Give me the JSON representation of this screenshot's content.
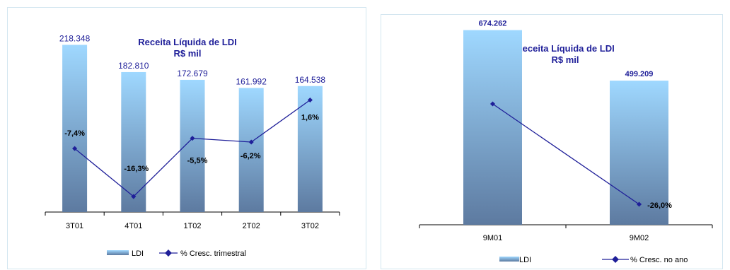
{
  "chart_data": [
    {
      "type": "bar",
      "title": "Receita Líquida de LDI",
      "subtitle": "R$ mil",
      "categories": [
        "3T01",
        "4T01",
        "1T02",
        "2T02",
        "3T02"
      ],
      "series": [
        {
          "name": "LDI",
          "kind": "bar",
          "values": [
            218.348,
            182.81,
            172.679,
            161.992,
            164.538
          ],
          "labels": [
            "218.348",
            "182.810",
            "172.679",
            "161.992",
            "164.538"
          ]
        },
        {
          "name": "% Cresc. trimestral",
          "kind": "line",
          "values": [
            -7.4,
            -16.3,
            -5.5,
            -6.2,
            1.6
          ],
          "labels": [
            "-7,4%",
            "-16,3%",
            "-5,5%",
            "-6,2%",
            "1,6%"
          ]
        }
      ],
      "bar_ylim": [
        0,
        240
      ],
      "line_ylim": [
        -18,
        3.5
      ],
      "legend": "bottom",
      "colors": {
        "bar_top": "#9fd8ff",
        "bar_bottom": "#5d7aa0",
        "line": "#1f1f99",
        "value_label": "#1f1f99"
      }
    },
    {
      "type": "bar",
      "title": "Receita Líquida de LDI",
      "subtitle": "R$ mil",
      "categories": [
        "9M01",
        "9M02"
      ],
      "series": [
        {
          "name": "LDI",
          "kind": "bar",
          "values": [
            674.262,
            499.209
          ],
          "labels": [
            "674.262",
            "499.209"
          ]
        },
        {
          "name": "% Cresc. no ano",
          "kind": "line",
          "values": [
            null,
            -26.0
          ],
          "labels": [
            "",
            "-26,0%"
          ]
        }
      ],
      "bar_ylim": [
        0,
        710
      ],
      "legend": "bottom",
      "colors": {
        "bar_top": "#9fd8ff",
        "bar_bottom": "#5d7aa0",
        "line": "#1f1f99",
        "value_label": "#1f1f99"
      }
    }
  ]
}
